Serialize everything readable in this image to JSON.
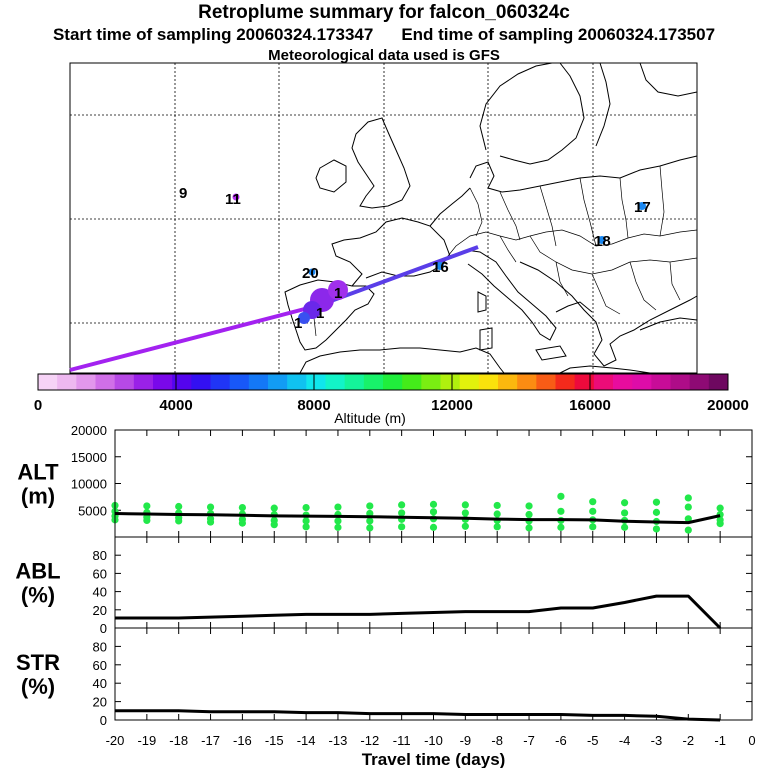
{
  "header": {
    "title": "Retroplume summary for falcon_060324c",
    "start_label": "Start time of sampling 20060324.173347",
    "end_label": "End time of sampling 20060324.173507",
    "met_label": "Meteorological data used is GFS"
  },
  "colorbar": {
    "ticks": [
      "0",
      "4000",
      "8000",
      "12000",
      "16000",
      "20000"
    ],
    "label": "Altitude (m)",
    "colors": [
      "#f6d3f6",
      "#eeb8f0",
      "#e297ec",
      "#d06fe8",
      "#b749e6",
      "#9a21e8",
      "#7a08ea",
      "#5404ee",
      "#3310f2",
      "#2035f6",
      "#1858f8",
      "#1478f6",
      "#129cf4",
      "#10c2f0",
      "#10e6ec",
      "#12f4c8",
      "#14f49a",
      "#18f26a",
      "#20ee3c",
      "#44ec1a",
      "#7aee12",
      "#b0f00e",
      "#e2f20c",
      "#fae20c",
      "#fcb80e",
      "#fc8c12",
      "#f85c16",
      "#f42a1c",
      "#ee0a3c",
      "#ec0c78",
      "#e80c9e",
      "#de0ca8",
      "#c80c98",
      "#ae0c88",
      "#8e0a74",
      "#6e0860"
    ]
  },
  "map_labels": [
    "9",
    "11",
    "20",
    "1",
    "1",
    "1",
    "16",
    "17",
    "18"
  ],
  "chart_data": [
    {
      "type": "line",
      "name": "ALT",
      "ylabel": "ALT\n(m)",
      "ylabel_lines": [
        "ALT",
        "(m)"
      ],
      "yticks": [
        "5000",
        "10000",
        "15000",
        "20000"
      ],
      "ylim": [
        0,
        20000
      ],
      "x": [
        -20,
        -19,
        -18,
        -17,
        -16,
        -15,
        -14,
        -13,
        -12,
        -11,
        -10,
        -9,
        -8,
        -7,
        -6,
        -5,
        -4,
        -3,
        -2,
        -1
      ],
      "values": [
        4400,
        4300,
        4200,
        4150,
        4050,
        3950,
        3900,
        3850,
        3800,
        3700,
        3600,
        3500,
        3350,
        3250,
        3250,
        3200,
        2950,
        2800,
        2700,
        4000
      ],
      "scatter": [
        [
          -20,
          5900
        ],
        [
          -20,
          4800
        ],
        [
          -20,
          3900
        ],
        [
          -20,
          3200
        ],
        [
          -19,
          5800
        ],
        [
          -19,
          4600
        ],
        [
          -19,
          3700
        ],
        [
          -19,
          3100
        ],
        [
          -18,
          5700
        ],
        [
          -18,
          4500
        ],
        [
          -18,
          3600
        ],
        [
          -18,
          3000
        ],
        [
          -17,
          5600
        ],
        [
          -17,
          4400
        ],
        [
          -17,
          3400
        ],
        [
          -17,
          2800
        ],
        [
          -16,
          5500
        ],
        [
          -16,
          4300
        ],
        [
          -16,
          3300
        ],
        [
          -16,
          2600
        ],
        [
          -15,
          5400
        ],
        [
          -15,
          4200
        ],
        [
          -15,
          3100
        ],
        [
          -15,
          2300
        ],
        [
          -14,
          5500
        ],
        [
          -14,
          4100
        ],
        [
          -14,
          3000
        ],
        [
          -14,
          1900
        ],
        [
          -13,
          5600
        ],
        [
          -13,
          4200
        ],
        [
          -13,
          3000
        ],
        [
          -13,
          1800
        ],
        [
          -12,
          5800
        ],
        [
          -12,
          4400
        ],
        [
          -12,
          3000
        ],
        [
          -12,
          1700
        ],
        [
          -11,
          6000
        ],
        [
          -11,
          4500
        ],
        [
          -11,
          3300
        ],
        [
          -11,
          1900
        ],
        [
          -10,
          6100
        ],
        [
          -10,
          4700
        ],
        [
          -10,
          3400
        ],
        [
          -10,
          1800
        ],
        [
          -9,
          6000
        ],
        [
          -9,
          4500
        ],
        [
          -9,
          3300
        ],
        [
          -9,
          2000
        ],
        [
          -8,
          5900
        ],
        [
          -8,
          4300
        ],
        [
          -8,
          3100
        ],
        [
          -8,
          1900
        ],
        [
          -7,
          5800
        ],
        [
          -7,
          4200
        ],
        [
          -7,
          3000
        ],
        [
          -7,
          1700
        ],
        [
          -6,
          7600
        ],
        [
          -6,
          4800
        ],
        [
          -6,
          3100
        ],
        [
          -6,
          1800
        ],
        [
          -5,
          6600
        ],
        [
          -5,
          4800
        ],
        [
          -5,
          3200
        ],
        [
          -5,
          1900
        ],
        [
          -4,
          6400
        ],
        [
          -4,
          4500
        ],
        [
          -4,
          3100
        ],
        [
          -4,
          1800
        ],
        [
          -3,
          6500
        ],
        [
          -3,
          4600
        ],
        [
          -3,
          2900
        ],
        [
          -3,
          1500
        ],
        [
          -2,
          7300
        ],
        [
          -2,
          5600
        ],
        [
          -2,
          3400
        ],
        [
          -2,
          1300
        ],
        [
          -1,
          5400
        ],
        [
          -1,
          4200
        ],
        [
          -1,
          3200
        ],
        [
          -1,
          2500
        ]
      ]
    },
    {
      "type": "line",
      "name": "ABL",
      "ylabel": "ABL\n(%)",
      "ylabel_lines": [
        "ABL",
        "(%)"
      ],
      "yticks": [
        "0",
        "20",
        "40",
        "60",
        "80"
      ],
      "ylim": [
        0,
        100
      ],
      "x": [
        -20,
        -19,
        -18,
        -17,
        -16,
        -15,
        -14,
        -13,
        -12,
        -11,
        -10,
        -9,
        -8,
        -7,
        -6,
        -5,
        -4,
        -3,
        -2,
        -1
      ],
      "values": [
        11,
        11,
        11,
        12,
        13,
        14,
        15,
        15,
        15,
        16,
        17,
        18,
        18,
        18,
        22,
        22,
        28,
        35,
        35,
        0
      ]
    },
    {
      "type": "line",
      "name": "STR",
      "ylabel": "STR\n(%)",
      "ylabel_lines": [
        "STR",
        "(%)"
      ],
      "yticks": [
        "0",
        "20",
        "40",
        "60",
        "80"
      ],
      "ylim": [
        0,
        100
      ],
      "x": [
        -20,
        -19,
        -18,
        -17,
        -16,
        -15,
        -14,
        -13,
        -12,
        -11,
        -10,
        -9,
        -8,
        -7,
        -6,
        -5,
        -4,
        -3,
        -2,
        -1
      ],
      "values": [
        10,
        10,
        10,
        9,
        9,
        9,
        8,
        8,
        7,
        7,
        7,
        6,
        6,
        6,
        6,
        5,
        5,
        4,
        1,
        0
      ]
    }
  ],
  "xaxis": {
    "label": "Travel time (days)",
    "ticks": [
      "-20",
      "-19",
      "-18",
      "-17",
      "-16",
      "-15",
      "-14",
      "-13",
      "-12",
      "-11",
      "-10",
      "-9",
      "-8",
      "-7",
      "-6",
      "-5",
      "-4",
      "-3",
      "-2",
      "-1",
      "0"
    ],
    "range": [
      -20,
      0
    ]
  },
  "colors": {
    "line": "#000000",
    "scatter": "#22e84a",
    "grid": "#000000",
    "trajectory": "#a322f0"
  }
}
